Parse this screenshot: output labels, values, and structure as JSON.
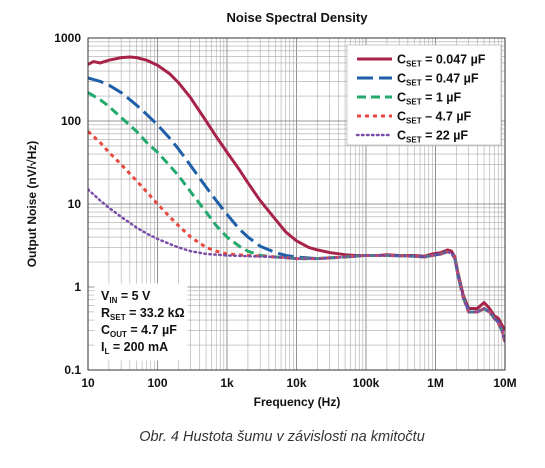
{
  "chart_data": {
    "type": "line",
    "title": "Noise Spectral Density",
    "xlabel": "Frequency (Hz)",
    "ylabel": "Output Noise (nV/√Hz)",
    "x_scale": "log",
    "y_scale": "log",
    "xlim": [
      10,
      10000000
    ],
    "ylim": [
      0.1,
      1000
    ],
    "grid": true,
    "x_ticks": [
      {
        "value": 10,
        "label": "10"
      },
      {
        "value": 100,
        "label": "100"
      },
      {
        "value": 1000,
        "label": "1k"
      },
      {
        "value": 10000,
        "label": "10k"
      },
      {
        "value": 100000,
        "label": "100k"
      },
      {
        "value": 1000000,
        "label": "1M"
      },
      {
        "value": 10000000,
        "label": "10M"
      }
    ],
    "y_ticks": [
      {
        "value": 0.1,
        "label": "0.1"
      },
      {
        "value": 1,
        "label": "1"
      },
      {
        "value": 10,
        "label": "10"
      },
      {
        "value": 100,
        "label": "100"
      },
      {
        "value": 1000,
        "label": "1000"
      }
    ],
    "legend_position": "top-right",
    "series": [
      {
        "name_main": "C",
        "name_sub": "SET",
        "name_rest": " = 0.047 µF",
        "color": "#a8234a",
        "dash": "solid",
        "width": 3,
        "points": [
          [
            10,
            480
          ],
          [
            12,
            520
          ],
          [
            15,
            500
          ],
          [
            20,
            540
          ],
          [
            30,
            580
          ],
          [
            40,
            590
          ],
          [
            50,
            580
          ],
          [
            70,
            540
          ],
          [
            100,
            470
          ],
          [
            150,
            370
          ],
          [
            200,
            290
          ],
          [
            300,
            190
          ],
          [
            500,
            100
          ],
          [
            700,
            65
          ],
          [
            1000,
            42
          ],
          [
            1500,
            26
          ],
          [
            2000,
            18
          ],
          [
            3000,
            11
          ],
          [
            5000,
            6.5
          ],
          [
            7000,
            4.6
          ],
          [
            10000,
            3.6
          ],
          [
            15000,
            3.0
          ],
          [
            20000,
            2.8
          ],
          [
            30000,
            2.6
          ],
          [
            50000,
            2.45
          ],
          [
            70000,
            2.4
          ],
          [
            100000,
            2.4
          ],
          [
            150000,
            2.4
          ],
          [
            200000,
            2.45
          ],
          [
            300000,
            2.4
          ],
          [
            500000,
            2.4
          ],
          [
            700000,
            2.35
          ],
          [
            900000,
            2.5
          ],
          [
            1200000,
            2.6
          ],
          [
            1500000,
            2.8
          ],
          [
            1700000,
            2.7
          ],
          [
            1900000,
            2.3
          ],
          [
            2100000,
            1.5
          ],
          [
            2500000,
            0.8
          ],
          [
            3000000,
            0.55
          ],
          [
            4000000,
            0.55
          ],
          [
            5000000,
            0.65
          ],
          [
            6000000,
            0.55
          ],
          [
            7000000,
            0.45
          ],
          [
            8000000,
            0.42
          ],
          [
            9000000,
            0.35
          ],
          [
            10000000,
            0.3
          ]
        ]
      },
      {
        "name_main": "C",
        "name_sub": "SET",
        "name_rest": " = 0.47 µF",
        "color": "#1f5fa8",
        "dash": "long",
        "width": 3,
        "points": [
          [
            10,
            330
          ],
          [
            15,
            300
          ],
          [
            20,
            270
          ],
          [
            30,
            220
          ],
          [
            50,
            155
          ],
          [
            70,
            120
          ],
          [
            100,
            90
          ],
          [
            150,
            62
          ],
          [
            200,
            46
          ],
          [
            300,
            29
          ],
          [
            500,
            16
          ],
          [
            700,
            11
          ],
          [
            1000,
            7.5
          ],
          [
            1500,
            5
          ],
          [
            2000,
            4
          ],
          [
            3000,
            3.1
          ],
          [
            5000,
            2.6
          ],
          [
            7000,
            2.4
          ],
          [
            10000,
            2.3
          ],
          [
            20000,
            2.2
          ],
          [
            50000,
            2.3
          ],
          [
            100000,
            2.4
          ],
          [
            200000,
            2.4
          ],
          [
            500000,
            2.35
          ],
          [
            700000,
            2.3
          ],
          [
            900000,
            2.4
          ],
          [
            1200000,
            2.5
          ],
          [
            1500000,
            2.7
          ],
          [
            1700000,
            2.6
          ],
          [
            1900000,
            2.2
          ],
          [
            2100000,
            1.4
          ],
          [
            2500000,
            0.75
          ],
          [
            3000000,
            0.52
          ],
          [
            4000000,
            0.5
          ],
          [
            5000000,
            0.55
          ],
          [
            6000000,
            0.5
          ],
          [
            7000000,
            0.42
          ],
          [
            8000000,
            0.38
          ],
          [
            9000000,
            0.3
          ],
          [
            10000000,
            0.22
          ]
        ]
      },
      {
        "name_main": "C",
        "name_sub": "SET",
        "name_rest": " = 1 µF",
        "color": "#22a96b",
        "dash": "medium",
        "width": 3,
        "points": [
          [
            10,
            220
          ],
          [
            15,
            180
          ],
          [
            20,
            150
          ],
          [
            30,
            110
          ],
          [
            50,
            75
          ],
          [
            70,
            55
          ],
          [
            100,
            42
          ],
          [
            150,
            29
          ],
          [
            200,
            22
          ],
          [
            300,
            14
          ],
          [
            500,
            8
          ],
          [
            700,
            5.5
          ],
          [
            1000,
            4
          ],
          [
            1500,
            3.1
          ],
          [
            2000,
            2.7
          ],
          [
            3000,
            2.4
          ],
          [
            5000,
            2.3
          ],
          [
            10000,
            2.2
          ],
          [
            20000,
            2.2
          ],
          [
            50000,
            2.3
          ],
          [
            100000,
            2.4
          ],
          [
            200000,
            2.4
          ],
          [
            500000,
            2.35
          ],
          [
            700000,
            2.3
          ],
          [
            900000,
            2.4
          ],
          [
            1200000,
            2.5
          ],
          [
            1500000,
            2.65
          ],
          [
            1700000,
            2.55
          ],
          [
            1900000,
            2.2
          ],
          [
            2100000,
            1.4
          ],
          [
            2500000,
            0.75
          ],
          [
            3000000,
            0.5
          ],
          [
            4000000,
            0.5
          ],
          [
            5000000,
            0.55
          ],
          [
            6000000,
            0.5
          ],
          [
            7000000,
            0.42
          ],
          [
            8000000,
            0.37
          ],
          [
            9000000,
            0.3
          ],
          [
            10000000,
            0.22
          ]
        ]
      },
      {
        "name_main": "C",
        "name_sub": "SET",
        "name_rest": " – 4.7 µF",
        "color": "#e8493f",
        "dash": "short",
        "width": 3,
        "points": [
          [
            10,
            75
          ],
          [
            15,
            55
          ],
          [
            20,
            42
          ],
          [
            30,
            30
          ],
          [
            50,
            19
          ],
          [
            70,
            14
          ],
          [
            100,
            10
          ],
          [
            150,
            7
          ],
          [
            200,
            5.5
          ],
          [
            300,
            4
          ],
          [
            500,
            3
          ],
          [
            700,
            2.7
          ],
          [
            1000,
            2.5
          ],
          [
            2000,
            2.4
          ],
          [
            5000,
            2.3
          ],
          [
            10000,
            2.2
          ],
          [
            20000,
            2.2
          ],
          [
            50000,
            2.3
          ],
          [
            100000,
            2.4
          ],
          [
            200000,
            2.4
          ],
          [
            500000,
            2.35
          ],
          [
            700000,
            2.3
          ],
          [
            900000,
            2.4
          ],
          [
            1200000,
            2.5
          ],
          [
            1500000,
            2.65
          ],
          [
            1700000,
            2.55
          ],
          [
            1900000,
            2.2
          ],
          [
            2100000,
            1.4
          ],
          [
            2500000,
            0.75
          ],
          [
            3000000,
            0.5
          ],
          [
            4000000,
            0.5
          ],
          [
            5000000,
            0.55
          ],
          [
            6000000,
            0.5
          ],
          [
            7000000,
            0.42
          ],
          [
            8000000,
            0.37
          ],
          [
            9000000,
            0.3
          ],
          [
            10000000,
            0.22
          ]
        ]
      },
      {
        "name_main": "C",
        "name_sub": "SET",
        "name_rest": " = 22 µF",
        "color": "#7a4ea8",
        "dash": "dotted",
        "width": 2.5,
        "points": [
          [
            10,
            15
          ],
          [
            15,
            11
          ],
          [
            20,
            9
          ],
          [
            30,
            7
          ],
          [
            50,
            5.2
          ],
          [
            70,
            4.4
          ],
          [
            100,
            3.8
          ],
          [
            150,
            3.3
          ],
          [
            200,
            3
          ],
          [
            300,
            2.7
          ],
          [
            500,
            2.5
          ],
          [
            1000,
            2.4
          ],
          [
            2000,
            2.35
          ],
          [
            5000,
            2.3
          ],
          [
            10000,
            2.2
          ],
          [
            20000,
            2.2
          ],
          [
            50000,
            2.3
          ],
          [
            100000,
            2.4
          ],
          [
            200000,
            2.4
          ],
          [
            500000,
            2.35
          ],
          [
            700000,
            2.3
          ],
          [
            900000,
            2.4
          ],
          [
            1200000,
            2.5
          ],
          [
            1500000,
            2.65
          ],
          [
            1700000,
            2.55
          ],
          [
            1900000,
            2.2
          ],
          [
            2100000,
            1.4
          ],
          [
            2500000,
            0.75
          ],
          [
            3000000,
            0.5
          ],
          [
            4000000,
            0.5
          ],
          [
            5000000,
            0.55
          ],
          [
            6000000,
            0.5
          ],
          [
            7000000,
            0.42
          ],
          [
            8000000,
            0.37
          ],
          [
            9000000,
            0.3
          ],
          [
            10000000,
            0.22
          ]
        ]
      }
    ],
    "conditions": [
      {
        "main": "V",
        "sub": "IN",
        "rest": " = 5 V"
      },
      {
        "main": "R",
        "sub": "SET",
        "rest": " = 33.2 kΩ"
      },
      {
        "main": "C",
        "sub": "OUT",
        "rest": " = 4.7 µF"
      },
      {
        "main": "I",
        "sub": "L",
        "rest": " = 200 mA"
      }
    ]
  },
  "caption": "Obr. 4  Hustota šumu v závislosti na kmitočtu"
}
